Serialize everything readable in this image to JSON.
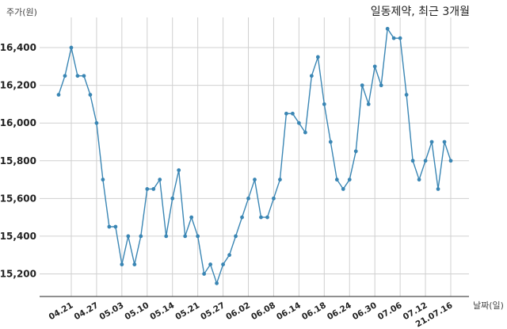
{
  "chart_data": {
    "type": "line",
    "title": "일동제약, 최근 3개월",
    "ylabel": "주가(원)",
    "xlabel": "날짜(일)",
    "ylim": [
      15080,
      16560
    ],
    "yticks": [
      15200,
      15400,
      15600,
      15800,
      16000,
      16200,
      16400
    ],
    "ytick_labels": [
      "15,200",
      "15,400",
      "15,600",
      "15,800",
      "16,000",
      "16,200",
      "16,400"
    ],
    "grid": true,
    "line_color": "#3a86b4",
    "xtick_labels": [
      "04.21",
      "04.27",
      "05.03",
      "05.10",
      "05.14",
      "05.21",
      "05.27",
      "06.02",
      "06.08",
      "06.14",
      "06.18",
      "06.24",
      "06.30",
      "07.06",
      "07.12",
      "21.07.16"
    ],
    "xtick_index": [
      2,
      6,
      10,
      14,
      18,
      22,
      26,
      30,
      34,
      38,
      42,
      46,
      50,
      54,
      58,
      62
    ],
    "series": [
      {
        "values": [
          16150,
          16250,
          16400,
          16250,
          16250,
          16150,
          16000,
          15700,
          15450,
          15450,
          15250,
          15400,
          15250,
          15400,
          15650,
          15650,
          15700,
          15400,
          15600,
          15750,
          15400,
          15500,
          15400,
          15200,
          15250,
          15150,
          15250,
          15300,
          15400,
          15500,
          15600,
          15700,
          15500,
          15500,
          15600,
          15700,
          16050,
          16050,
          16000,
          15950,
          16250,
          16350,
          16100,
          15900,
          15700,
          15650,
          15700,
          15850,
          16200,
          16100,
          16300,
          16200,
          16500,
          16450,
          16450,
          16150,
          15800,
          15700,
          15800,
          15900,
          15650,
          15900,
          15800
        ]
      }
    ]
  }
}
